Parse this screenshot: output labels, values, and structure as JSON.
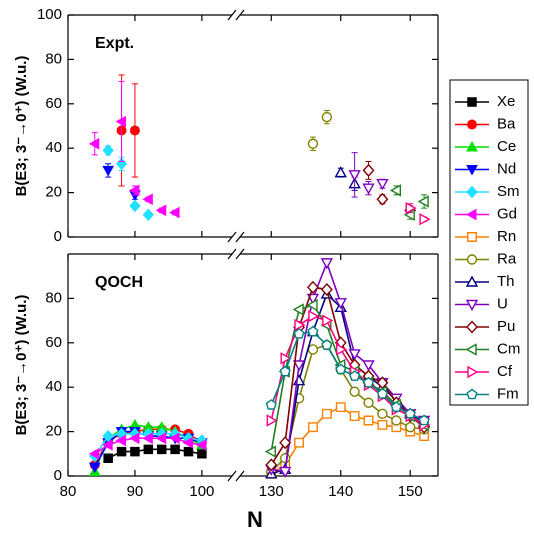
{
  "chart_data": {
    "type": "scatter",
    "xlabel": "N",
    "xlim": [
      [
        80,
        104.5
      ],
      [
        125.5,
        154
      ]
    ],
    "xticks": [
      80,
      90,
      100,
      130,
      140,
      150
    ],
    "panels": [
      {
        "key": "expt",
        "title": "Expt.",
        "ylabel": "B(E3; 3⁻→0⁺) (W.u.)",
        "ylim": [
          0,
          100
        ],
        "yticks": [
          0,
          20,
          40,
          60,
          80,
          100
        ]
      },
      {
        "key": "qoch",
        "title": "QOCH",
        "ylabel": "B(E3; 3⁻→0⁺) (W.u.)",
        "ylim": [
          0,
          100
        ],
        "yticks": [
          0,
          20,
          40,
          60,
          80
        ]
      }
    ],
    "series": [
      {
        "name": "Xe",
        "color": "#000000",
        "marker": "square",
        "qoch": [
          {
            "x": [
              86,
              88,
              90,
              92,
              94,
              96,
              98,
              100
            ],
            "values": [
              8,
              11,
              11,
              12,
              12,
              12,
              11,
              10
            ]
          }
        ]
      },
      {
        "name": "Ba",
        "color": "#ff0000",
        "marker": "circle",
        "expt": {
          "x": [
            88,
            90
          ],
          "values": [
            48,
            48
          ],
          "errors": [
            25,
            21
          ]
        },
        "qoch": [
          {
            "x": [
              84,
              86,
              88,
              90,
              92,
              94,
              96,
              98,
              100
            ],
            "values": [
              5,
              16,
              19,
              20,
              21,
              21,
              21,
              19,
              15
            ]
          }
        ]
      },
      {
        "name": "Ce",
        "color": "#00dd00",
        "marker": "triangle-up",
        "qoch": [
          {
            "x": [
              84,
              86,
              88,
              90,
              92,
              94,
              96,
              98,
              100
            ],
            "values": [
              2,
              17,
              21,
              23,
              22,
              22,
              20,
              17,
              14
            ]
          }
        ]
      },
      {
        "name": "Nd",
        "color": "#0000ff",
        "marker": "triangle-down",
        "expt": {
          "x": [
            86,
            90
          ],
          "values": [
            30,
            19
          ],
          "errors": [
            3,
            2
          ]
        },
        "qoch": [
          {
            "x": [
              84,
              86,
              88,
              90,
              92,
              94,
              96,
              98,
              100
            ],
            "values": [
              4,
              15,
              20,
              20,
              18,
              18,
              17,
              17,
              15
            ]
          }
        ]
      },
      {
        "name": "Sm",
        "color": "#22e0ff",
        "marker": "diamond",
        "expt": {
          "x": [
            86,
            88,
            90,
            92
          ],
          "values": [
            39,
            33,
            14,
            10
          ],
          "errors": [
            2,
            3,
            1,
            1
          ]
        },
        "qoch": [
          {
            "x": [
              84,
              86,
              88,
              90,
              92,
              94,
              96,
              98,
              100
            ],
            "values": [
              9,
              18,
              19,
              19,
              19,
              19,
              19,
              17,
              16
            ]
          }
        ]
      },
      {
        "name": "Gd",
        "color": "#ff00ff",
        "marker": "triangle-left",
        "expt": {
          "x": [
            84,
            88,
            90,
            92,
            94,
            96
          ],
          "values": [
            42,
            52,
            21,
            17,
            12,
            11
          ],
          "errors": [
            5,
            18,
            2,
            1,
            1,
            1
          ]
        },
        "qoch": [
          {
            "x": [
              84,
              86,
              88,
              90,
              92,
              94,
              96,
              98,
              100
            ],
            "values": [
              10,
              14,
              16,
              17,
              17,
              17,
              17,
              15,
              14
            ]
          }
        ]
      },
      {
        "name": "Rn",
        "color": "#ff8000",
        "marker": "square-open",
        "qoch": [
          {
            "x": [
              130,
              132,
              134,
              136,
              138,
              140,
              142,
              144,
              146,
              148,
              150,
              152
            ],
            "values": [
              1,
              5,
              15,
              22,
              28,
              31,
              27,
              25,
              23,
              22,
              20,
              18
            ]
          }
        ]
      },
      {
        "name": "Ra",
        "color": "#808000",
        "marker": "circle-open",
        "expt": {
          "x": [
            136,
            138
          ],
          "values": [
            42,
            54
          ],
          "errors": [
            3,
            3
          ]
        },
        "qoch": [
          {
            "x": [
              130,
              132,
              134,
              136,
              138,
              140,
              142,
              144,
              146,
              148,
              150,
              152
            ],
            "values": [
              2,
              8,
              35,
              57,
              59,
              48,
              38,
              33,
              28,
              25,
              22,
              21
            ]
          }
        ]
      },
      {
        "name": "Th",
        "color": "#000080",
        "marker": "triangle-up-open",
        "expt": {
          "x": [
            140,
            142
          ],
          "values": [
            29,
            24
          ],
          "errors": [
            2,
            3
          ]
        },
        "qoch": [
          {
            "x": [
              130,
              132,
              134,
              136,
              138,
              140,
              142,
              144,
              146,
              148,
              150,
              152
            ],
            "values": [
              1,
              3,
              43,
              65,
              82,
              76,
              50,
              45,
              40,
              34,
              28,
              24
            ]
          }
        ]
      },
      {
        "name": "U",
        "color": "#8000c0",
        "marker": "triangle-down-open",
        "expt": {
          "x": [
            142,
            144,
            146
          ],
          "values": [
            28,
            22,
            24
          ],
          "errors": [
            10,
            3,
            2
          ]
        },
        "qoch": [
          {
            "x": [
              130,
              132,
              134,
              136,
              138,
              140,
              142,
              144,
              146,
              148,
              150,
              152
            ],
            "values": [
              3,
              2,
              50,
              80,
              96,
              78,
              55,
              50,
              42,
              35,
              28,
              25
            ]
          }
        ]
      },
      {
        "name": "Pu",
        "color": "#800000",
        "marker": "diamond-open",
        "expt": {
          "x": [
            144,
            146,
            150
          ],
          "values": [
            30,
            17,
            12
          ],
          "errors": [
            4,
            2,
            2
          ]
        },
        "qoch": [
          {
            "x": [
              130,
              132,
              134,
              136,
              138,
              140,
              142,
              144,
              146,
              148,
              150,
              152
            ],
            "values": [
              5,
              15,
              67,
              85,
              84,
              60,
              50,
              45,
              42,
              33,
              27,
              22
            ]
          }
        ]
      },
      {
        "name": "Cm",
        "color": "#208020",
        "marker": "triangle-left-open",
        "expt": {
          "x": [
            148,
            150,
            152
          ],
          "values": [
            21,
            10,
            16
          ],
          "errors": [
            2,
            2,
            3
          ]
        },
        "qoch": [
          {
            "x": [
              130,
              132,
              134,
              136,
              138,
              140,
              142,
              144,
              146,
              148,
              150,
              152
            ],
            "values": [
              11,
              47,
              75,
              77,
              68,
              50,
              47,
              42,
              38,
              32,
              27,
              23
            ]
          }
        ]
      },
      {
        "name": "Cf",
        "color": "#ff0080",
        "marker": "triangle-right-open",
        "expt": {
          "x": [
            150,
            152
          ],
          "values": [
            13,
            8
          ],
          "errors": [
            2,
            1
          ]
        },
        "qoch": [
          {
            "x": [
              130,
              132,
              134,
              136,
              138,
              140,
              142,
              144,
              146,
              148,
              150,
              152
            ],
            "values": [
              25,
              53,
              68,
              72,
              70,
              57,
              47,
              41,
              36,
              30,
              27,
              23
            ]
          }
        ]
      },
      {
        "name": "Fm",
        "color": "#008080",
        "marker": "pentagon-open",
        "qoch": [
          {
            "x": [
              130,
              132,
              134,
              136,
              138,
              140,
              142,
              144,
              146,
              148,
              150,
              152
            ],
            "values": [
              32,
              47,
              64,
              65,
              59,
              48,
              45,
              42,
              37,
              31,
              28,
              25
            ]
          }
        ]
      }
    ]
  }
}
